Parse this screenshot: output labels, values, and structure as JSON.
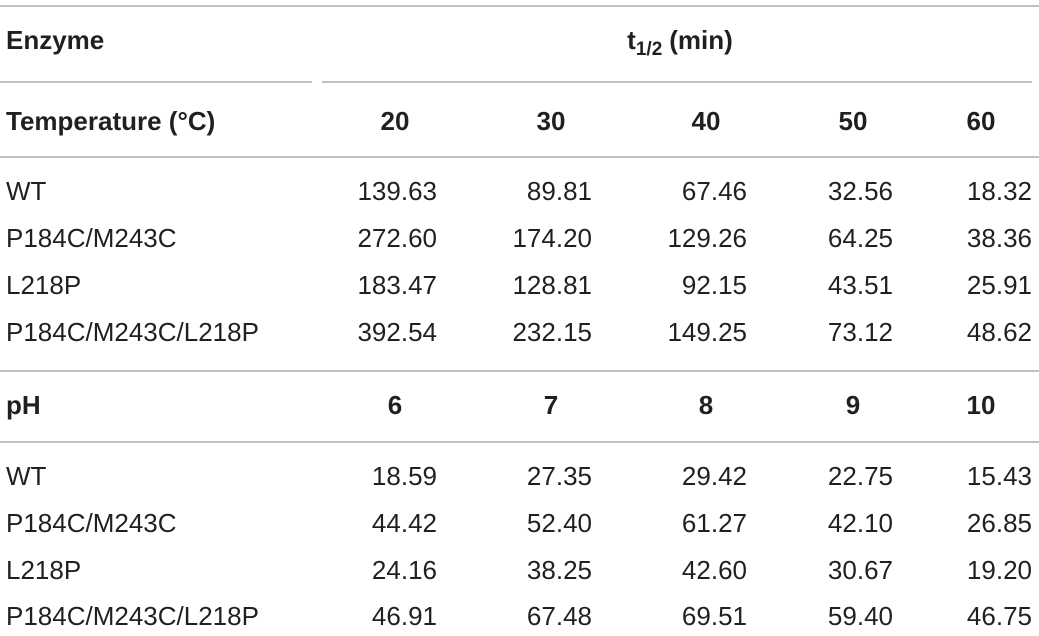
{
  "header": {
    "enzyme": "Enzyme",
    "t_base": "t",
    "t_sub": "1/2",
    "t_unit": "(min)"
  },
  "sections": [
    {
      "label": "Temperature (°C)",
      "columns": [
        "20",
        "30",
        "40",
        "50",
        "60"
      ],
      "rows": [
        {
          "enzyme": "WT",
          "values": [
            "139.63",
            "89.81",
            "67.46",
            "32.56",
            "18.32"
          ]
        },
        {
          "enzyme": "P184C/M243C",
          "values": [
            "272.60",
            "174.20",
            "129.26",
            "64.25",
            "38.36"
          ]
        },
        {
          "enzyme": "L218P",
          "values": [
            "183.47",
            "128.81",
            "92.15",
            "43.51",
            "25.91"
          ]
        },
        {
          "enzyme": "P184C/M243C/L218P",
          "values": [
            "392.54",
            "232.15",
            "149.25",
            "73.12",
            "48.62"
          ]
        }
      ]
    },
    {
      "label": "pH",
      "columns": [
        "6",
        "7",
        "8",
        "9",
        "10"
      ],
      "rows": [
        {
          "enzyme": "WT",
          "values": [
            "18.59",
            "27.35",
            "29.42",
            "22.75",
            "15.43"
          ]
        },
        {
          "enzyme": "P184C/M243C",
          "values": [
            "44.42",
            "52.40",
            "61.27",
            "42.10",
            "26.85"
          ]
        },
        {
          "enzyme": "L218P",
          "values": [
            "24.16",
            "38.25",
            "42.60",
            "30.67",
            "19.20"
          ]
        },
        {
          "enzyme": "P184C/M243C/L218P",
          "values": [
            "46.91",
            "67.48",
            "69.51",
            "59.40",
            "46.75"
          ]
        }
      ]
    }
  ]
}
